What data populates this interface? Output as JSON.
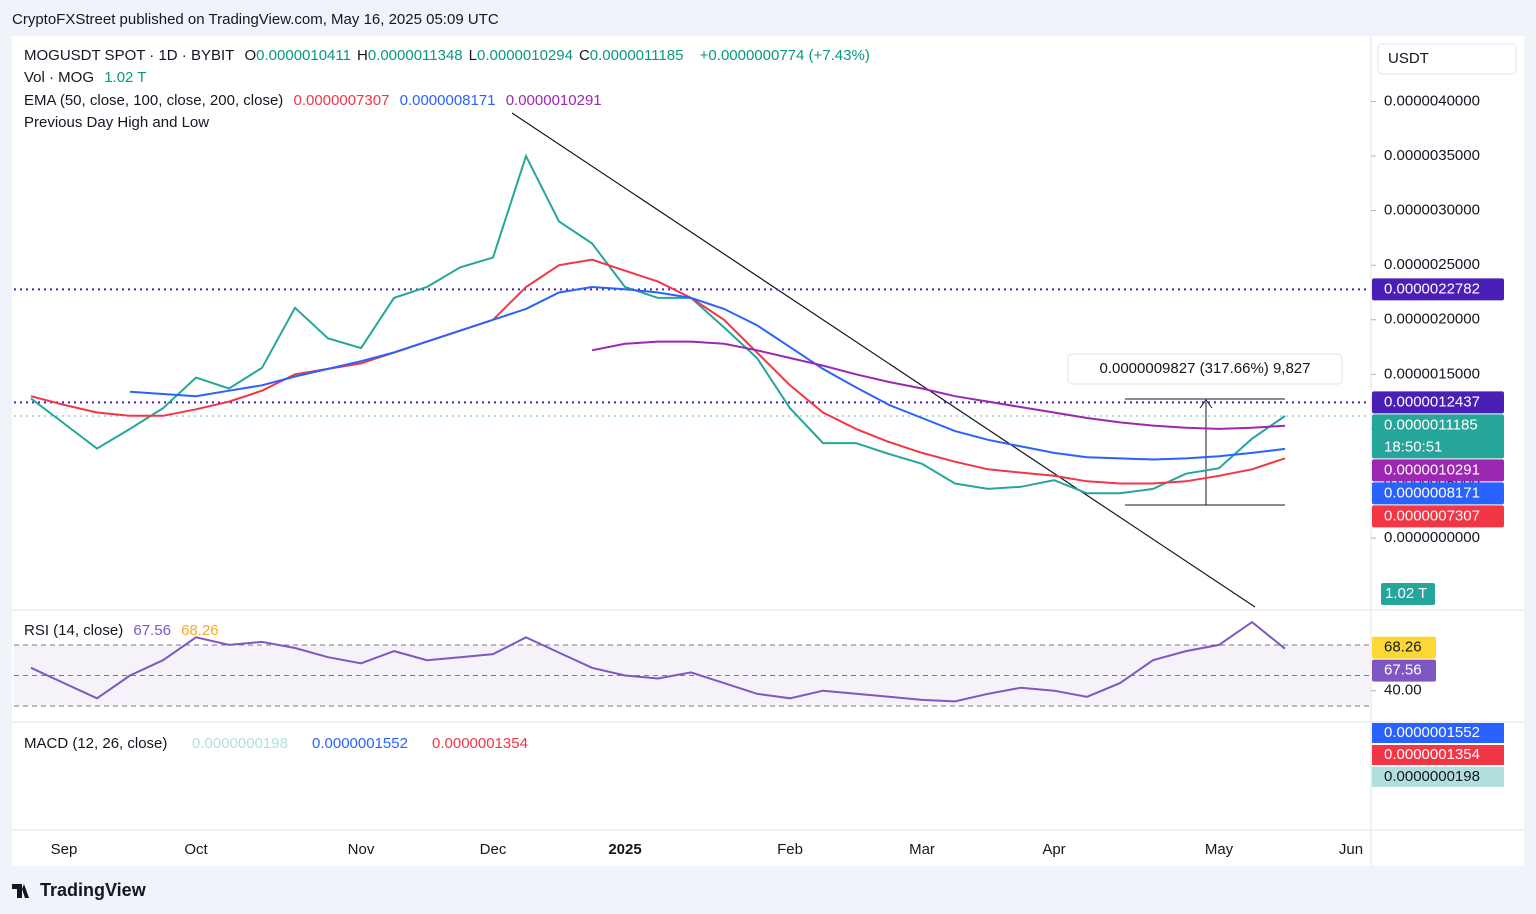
{
  "header": {
    "published": "CryptoFXStreet published on TradingView.com, May 16, 2025 05:09 UTC"
  },
  "legend": {
    "symbol": "MOGUSDT SPOT · 1D · BYBIT",
    "ohlc": [
      [
        "O",
        "0.0000010411"
      ],
      [
        "H",
        "0.0000011348"
      ],
      [
        "L",
        "0.0000010294"
      ],
      [
        "C",
        "0.0000011185"
      ]
    ],
    "change": "+0.0000000774 (+7.43%)",
    "vol": "Vol · MOG",
    "vol_value": "1.02 T",
    "ema": "EMA (50, close, 100, close, 200, close)",
    "ema_values": [
      "0.0000007307",
      "0.0000008171",
      "0.0000010291"
    ],
    "pdhl": "Previous Day High and Low"
  },
  "measure": "0.0000009827 (317.66%) 9,827",
  "currency": "USDT",
  "volume_tag": "1.02 T",
  "macd": {
    "title": "MACD (12, 26, close)",
    "values": [
      "0.0000000198",
      "0.0000001552",
      "0.0000001354"
    ]
  },
  "footer": "TradingView",
  "chart_data": [
    {
      "type": "line",
      "categories": [
        null,
        "Sep",
        null,
        null,
        null,
        "Oct",
        null,
        null,
        null,
        null,
        "Nov",
        null,
        null,
        null,
        "Dec",
        null,
        null,
        null,
        "2025",
        null,
        null,
        null,
        null,
        "Feb",
        null,
        null,
        null,
        "Mar",
        null,
        null,
        null,
        "Apr",
        null,
        null,
        null,
        null,
        "May",
        null,
        null,
        null,
        "Jun"
      ],
      "ylim": [
        -6.5e-07,
        4.6e-06
      ],
      "yticks": [
        {
          "value": 0,
          "label": "0.0000000000"
        },
        {
          "value": 5e-07,
          "label": "0.0000005000"
        },
        {
          "value": 1e-06,
          "label": "0.0000010000"
        },
        {
          "value": 1.5e-06,
          "label": "0.0000015000"
        },
        {
          "value": 2e-06,
          "label": "0.0000020000"
        },
        {
          "value": 2.5e-06,
          "label": "0.0000025000"
        },
        {
          "value": 3e-06,
          "label": "0.0000030000"
        },
        {
          "value": 3.5e-06,
          "label": "0.0000035000"
        },
        {
          "value": 4e-06,
          "label": "0.0000040000"
        }
      ],
      "grid": false,
      "series": [
        {
          "color": "#26a69a",
          "values": [
            1.28e-06,
            1.05e-06,
            8.2e-07,
            1e-06,
            1.19e-06,
            1.47e-06,
            1.37e-06,
            1.56e-06,
            2.11e-06,
            1.83e-06,
            1.74e-06,
            2.2e-06,
            2.3e-06,
            2.48e-06,
            2.57e-06,
            3.5e-06,
            2.9e-06,
            2.7e-06,
            2.3e-06,
            2.2e-06,
            2.2e-06,
            1.93e-06,
            1.65e-06,
            1.19e-06,
            8.7e-07,
            8.7e-07,
            7.7e-07,
            6.8e-07,
            5e-07,
            4.5e-07,
            4.7e-07,
            5.3e-07,
            4.1e-07,
            4.1e-07,
            4.5e-07,
            5.9e-07,
            6.4e-07,
            9.1e-07,
            1.1185e-06,
            null,
            null
          ]
        },
        {
          "color": "#f23645",
          "values": [
            1.3e-06,
            1.22e-06,
            1.15e-06,
            1.12e-06,
            1.12e-06,
            1.18e-06,
            1.25e-06,
            1.35e-06,
            1.5e-06,
            1.55e-06,
            1.6e-06,
            1.7e-06,
            1.8e-06,
            1.9e-06,
            2e-06,
            2.3e-06,
            2.5e-06,
            2.55e-06,
            2.45e-06,
            2.35e-06,
            2.2e-06,
            2e-06,
            1.7e-06,
            1.4e-06,
            1.15e-06,
            1e-06,
            8.8e-07,
            7.8e-07,
            7e-07,
            6.3e-07,
            6e-07,
            5.7e-07,
            5.2e-07,
            5e-07,
            5e-07,
            5.2e-07,
            5.7e-07,
            6.3e-07,
            7.307e-07,
            null,
            null
          ]
        },
        {
          "color": "#2962ff",
          "values": [
            null,
            null,
            null,
            1.34e-06,
            1.32e-06,
            1.3e-06,
            1.35e-06,
            1.4e-06,
            1.48e-06,
            1.55e-06,
            1.62e-06,
            1.7e-06,
            1.8e-06,
            1.9e-06,
            2e-06,
            2.1e-06,
            2.25e-06,
            2.3e-06,
            2.28e-06,
            2.25e-06,
            2.2e-06,
            2.1e-06,
            1.95e-06,
            1.75e-06,
            1.55e-06,
            1.38e-06,
            1.22e-06,
            1.1e-06,
            9.8e-07,
            9e-07,
            8.4e-07,
            7.8e-07,
            7.4e-07,
            7.3e-07,
            7.2e-07,
            7.3e-07,
            7.5e-07,
            7.8e-07,
            8.171e-07,
            null,
            null
          ]
        },
        {
          "color": "#9c27b0",
          "values": [
            null,
            null,
            null,
            null,
            null,
            null,
            null,
            null,
            null,
            null,
            null,
            null,
            null,
            null,
            null,
            null,
            null,
            1.72e-06,
            1.78e-06,
            1.8e-06,
            1.8e-06,
            1.78e-06,
            1.72e-06,
            1.65e-06,
            1.58e-06,
            1.5e-06,
            1.43e-06,
            1.37e-06,
            1.3e-06,
            1.25e-06,
            1.2e-06,
            1.15e-06,
            1.1e-06,
            1.06e-06,
            1.03e-06,
            1.01e-06,
            1e-06,
            1.01e-06,
            1.0291e-06,
            null,
            null
          ]
        }
      ],
      "price_tags": [
        {
          "value": 2.2782e-06,
          "label": "0.0000022782",
          "color": "#4a1fb8",
          "line": true
        },
        {
          "value": 1.2437e-06,
          "label": "0.0000012437",
          "color": "#4a1fb8",
          "line": true
        },
        {
          "value": 1.1185e-06,
          "label": "0.0000011185",
          "color": "#26a69a",
          "line": true,
          "countdown": "18:50:51"
        },
        {
          "value": 1.0291e-06,
          "label": "0.0000010291",
          "color": "#9c27b0"
        },
        {
          "value": 8.171e-07,
          "label": "0.0000008171",
          "color": "#2962ff"
        },
        {
          "value": 7.307e-07,
          "label": "0.0000007307",
          "color": "#f23645"
        }
      ]
    },
    {
      "type": "line",
      "title": "RSI (14, close)",
      "legend_values": [
        "67.56",
        "68.26"
      ],
      "categories": [
        null,
        null,
        null,
        null,
        null,
        null,
        null,
        null,
        null,
        null,
        null,
        null,
        null,
        null,
        null,
        null,
        null,
        null,
        null,
        null,
        null,
        null,
        null,
        null,
        null,
        null,
        null,
        null,
        null,
        null,
        null,
        null,
        null,
        null,
        null,
        null,
        null,
        null,
        null,
        null,
        null
      ],
      "ylim": [
        20.8,
        91.6
      ],
      "yticks": [
        {
          "value": 40,
          "label": "40.00"
        }
      ],
      "bands": [
        70,
        50,
        30
      ],
      "series": [
        {
          "color": "#7e57c2",
          "values": [
            55,
            45,
            35,
            50,
            60,
            75,
            70,
            72,
            68,
            62,
            58,
            66,
            60,
            62,
            64,
            75,
            65,
            55,
            50,
            48,
            52,
            45,
            38,
            35,
            40,
            38,
            36,
            34,
            33,
            38,
            42,
            40,
            36,
            45,
            60,
            66,
            70,
            85,
            67.56,
            null,
            null
          ]
        }
      ],
      "price_tags": [
        {
          "value": 68.26,
          "label": "68.26",
          "color": "#fdd835",
          "text_color": "#131722"
        },
        {
          "value": 67.56,
          "label": "67.56",
          "color": "#7e57c2",
          "text_color": "#ffffff"
        }
      ]
    }
  ]
}
